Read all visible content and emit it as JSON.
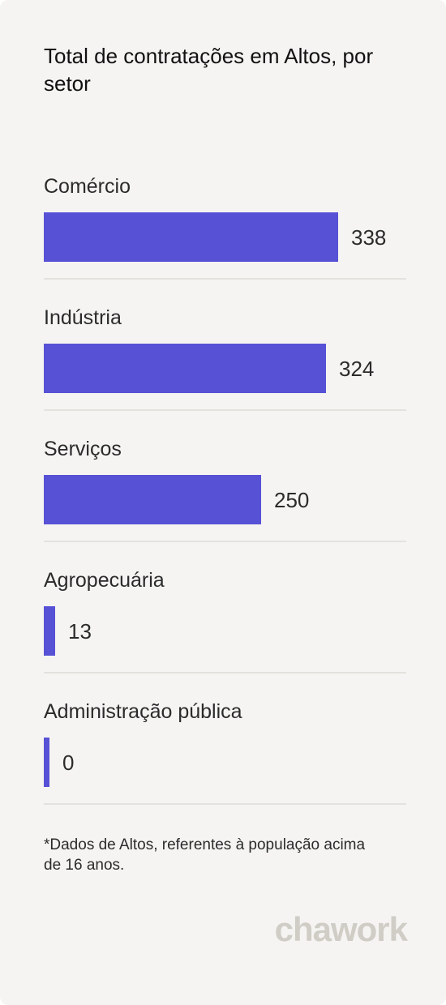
{
  "title": "Total de contratações em Altos, por setor",
  "colors": {
    "background": "#f5f4f2",
    "bar": "#5751d6",
    "divider": "#e3e2df",
    "text": "#2b2b2b",
    "brand": "#cfcdc6"
  },
  "chart_data": {
    "type": "bar",
    "orientation": "horizontal",
    "title": "Total de contratações em Altos, por setor",
    "categories": [
      "Comércio",
      "Indústria",
      "Serviços",
      "Agropecuária",
      "Administração pública"
    ],
    "values": [
      338,
      324,
      250,
      13,
      0
    ],
    "xlabel": "",
    "ylabel": "",
    "grid": false,
    "legend": "none"
  },
  "footnote": "*Dados de Altos, referentes à população acima de 16 anos.",
  "brand": "chawork"
}
